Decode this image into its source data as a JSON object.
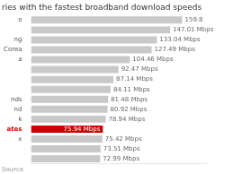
{
  "chart_data": {
    "type": "bar",
    "orientation": "horizontal",
    "title": "ries with the fastest broadband download speeds",
    "source": "Source",
    "categories": [
      "o",
      null,
      "ng",
      "Corea",
      "a",
      null,
      null,
      null,
      "nds",
      "nd",
      "k",
      "ates",
      "x",
      null,
      null
    ],
    "values": [
      159.8,
      147.01,
      133.04,
      127.49,
      104.46,
      92.47,
      87.14,
      84.11,
      81.48,
      80.92,
      78.94,
      75.94,
      75.42,
      73.51,
      72.99
    ],
    "value_labels": [
      "159.8",
      "147.01 Mbps",
      "133.04 Mbps",
      "127.49 Mbps",
      "104.46 Mbps",
      "92.47 Mbps",
      "87.14 Mbps",
      "84.11 Mbps",
      "81.48 Mbps",
      "80.92 Mbps",
      "78.94 Mbps",
      "75.94 Mbps",
      "75.42 Mbps",
      "73.51 Mbps",
      "72.99 Mbps"
    ],
    "colors": [
      "#c8c8c8",
      "#c8c8c8",
      "#c8c8c8",
      "#c8c8c8",
      "#c8c8c8",
      "#c8c8c8",
      "#c8c8c8",
      "#c8c8c8",
      "#c8c8c8",
      "#c8c8c8",
      "#c8c8c8",
      "#cc0000",
      "#c8c8c8",
      "#c8c8c8",
      "#c8c8c8"
    ],
    "xlim": [
      0,
      185
    ],
    "data_labels": true,
    "tick_labels": "y",
    "grid": false
  }
}
